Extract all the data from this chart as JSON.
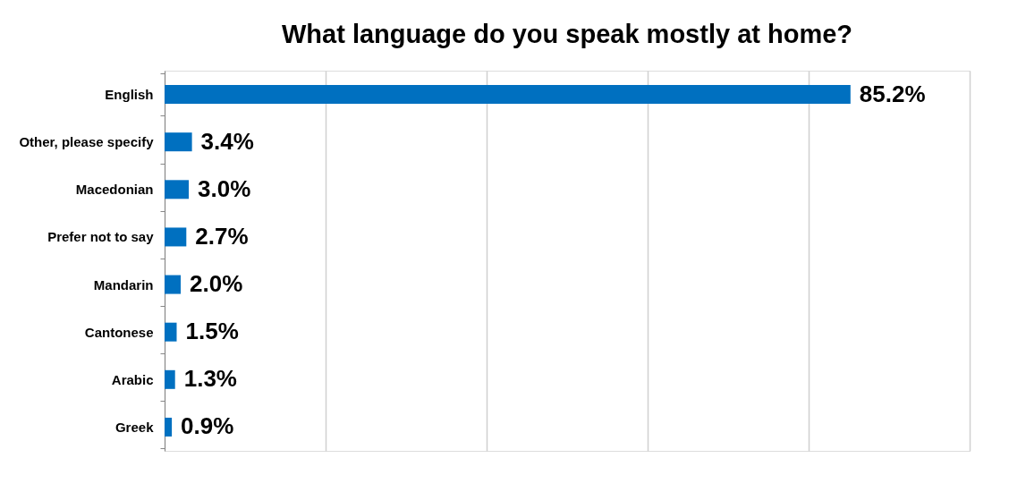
{
  "chart_data": {
    "type": "bar",
    "orientation": "horizontal",
    "title": "What language do you speak mostly at home?",
    "categories": [
      "English",
      "Other, please specify",
      "Macedonian",
      "Prefer not to say",
      "Mandarin",
      "Cantonese",
      "Arabic",
      "Greek"
    ],
    "values": [
      85.2,
      3.4,
      3.0,
      2.7,
      2.0,
      1.5,
      1.3,
      0.9
    ],
    "value_labels": [
      "85.2%",
      "3.4%",
      "3.0%",
      "2.7%",
      "2.0%",
      "1.5%",
      "1.3%",
      "0.9%"
    ],
    "color": "#0070c0",
    "xlim": [
      0,
      100
    ],
    "xticks": [
      {
        "value": 0,
        "label": null
      },
      {
        "value": 20,
        "label": null
      },
      {
        "value": 40,
        "label": null
      },
      {
        "value": 60,
        "label": null
      },
      {
        "value": 80,
        "label": null
      },
      {
        "value": 100,
        "label": null
      }
    ],
    "grid": "x",
    "tick_labels": "y"
  }
}
